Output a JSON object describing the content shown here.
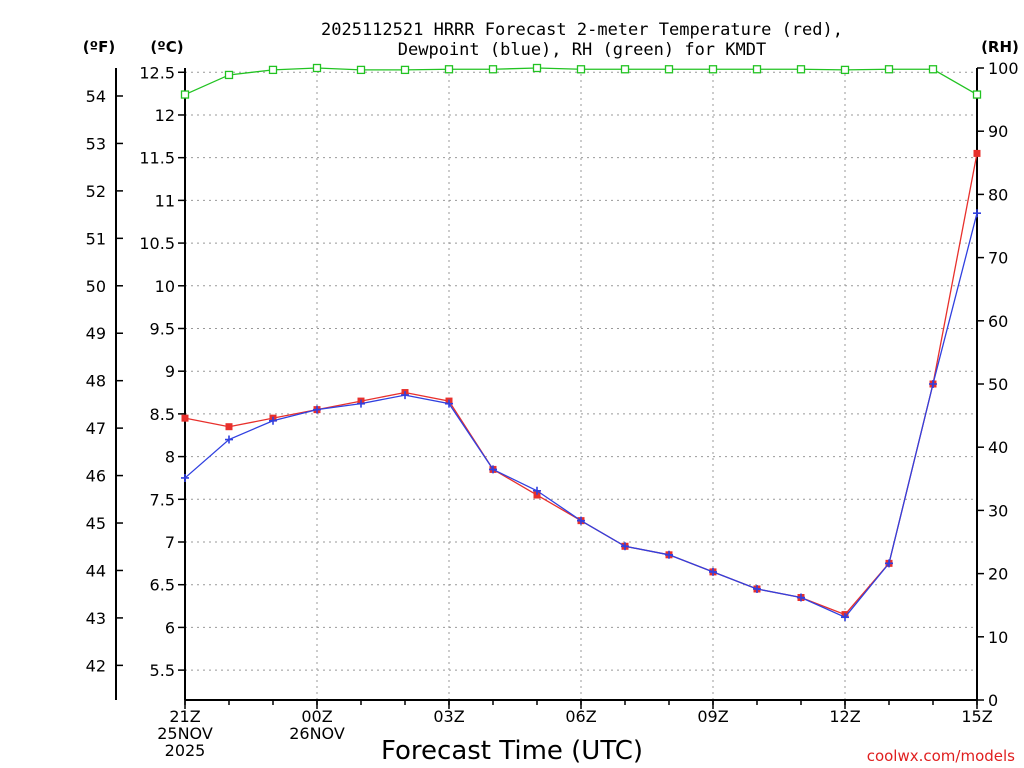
{
  "chart_data": {
    "type": "line",
    "title_line1": "2025112521 HRRR Forecast 2-meter Temperature (red),",
    "title_line2": "Dewpoint (blue), RH (green) for KMDT",
    "xlabel": "Forecast Time (UTC)",
    "unit_f": "(ºF)",
    "unit_c": "(ºC)",
    "unit_rh": "(RH)",
    "credit": "coolwx.com/models",
    "x_hours": [
      0,
      1,
      2,
      3,
      4,
      5,
      6,
      7,
      8,
      9,
      10,
      11,
      12,
      13,
      14,
      15,
      16,
      17,
      18
    ],
    "xlim": [
      0,
      18
    ],
    "x_ticks": [
      {
        "h": 0,
        "lines": [
          "21Z",
          "25NOV",
          "2025"
        ]
      },
      {
        "h": 3,
        "lines": [
          "00Z",
          "26NOV"
        ]
      },
      {
        "h": 6,
        "lines": [
          "03Z"
        ]
      },
      {
        "h": 9,
        "lines": [
          "06Z"
        ]
      },
      {
        "h": 12,
        "lines": [
          "09Z"
        ]
      },
      {
        "h": 15,
        "lines": [
          "12Z"
        ]
      },
      {
        "h": 18,
        "lines": [
          "15Z"
        ]
      }
    ],
    "c_ylim": [
      5.15,
      12.55
    ],
    "c_ticks": [
      "5.5",
      "6",
      "6.5",
      "7",
      "7.5",
      "8",
      "8.5",
      "9",
      "9.5",
      "10",
      "10.5",
      "11",
      "11.5",
      "12",
      "12.5"
    ],
    "f_ticks": [
      "42",
      "43",
      "44",
      "45",
      "46",
      "47",
      "48",
      "49",
      "50",
      "51",
      "52",
      "53",
      "54"
    ],
    "rh_ylim": [
      0,
      100
    ],
    "rh_ticks": [
      "0",
      "10",
      "20",
      "30",
      "40",
      "50",
      "60",
      "70",
      "80",
      "90",
      "100"
    ],
    "series": [
      {
        "name": "Temperature",
        "color": "#e8302c",
        "values_c": [
          8.45,
          8.35,
          8.45,
          8.55,
          8.65,
          8.75,
          8.65,
          7.85,
          7.55,
          7.25,
          6.95,
          6.85,
          6.65,
          6.45,
          6.35,
          6.15,
          6.75,
          8.85,
          11.55
        ]
      },
      {
        "name": "Dewpoint",
        "color": "#3040e0",
        "values_c": [
          7.75,
          8.2,
          8.42,
          8.55,
          8.62,
          8.72,
          8.62,
          7.85,
          7.6,
          7.25,
          6.95,
          6.85,
          6.65,
          6.45,
          6.35,
          6.12,
          6.75,
          8.85,
          10.85
        ]
      },
      {
        "name": "RH",
        "color": "#22c322",
        "values_rh": [
          95.8,
          98.9,
          99.7,
          100,
          99.7,
          99.7,
          99.8,
          99.8,
          100,
          99.8,
          99.8,
          99.8,
          99.8,
          99.8,
          99.8,
          99.7,
          99.8,
          99.8,
          95.8
        ]
      }
    ]
  }
}
